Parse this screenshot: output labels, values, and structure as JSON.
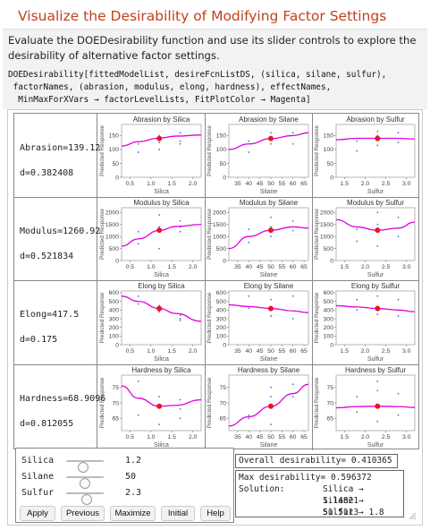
{
  "title": "Visualize the Desirability of Modifying Factor Settings",
  "description": "Evaluate the DOEDesirability function and use its slider controls to explore the desirability of alternative factor settings.",
  "code_lines": [
    "DOEDesirability[fittedModelList, desireFcnListDS, (silica, silane, sulfur),",
    " factorNames, (abrasion, modulus, elong, hardness), effectNames,",
    "  MinMaxForXVars → factorLevelLists, FitPlotColor → Magenta]"
  ],
  "rows": [
    {
      "response_label": "Abrasion=139.12",
      "desirability_label": "d=0.382408",
      "plots": [
        {
          "title": "Abrasion by Silica",
          "xlabel": "Silica",
          "ylabel": "Predicted Response",
          "xticks": [
            "0.5",
            "1.0",
            "1.5",
            "2.0"
          ],
          "yticks": [
            "0",
            "50",
            "100",
            "150"
          ]
        },
        {
          "title": "Abrasion by Silane",
          "xlabel": "Silane",
          "ylabel": "Predicted Response",
          "xticks": [
            "35",
            "40",
            "45",
            "50",
            "55",
            "60",
            "65"
          ],
          "yticks": [
            "0",
            "50",
            "100",
            "150"
          ]
        },
        {
          "title": "Abrasion by Sulfur",
          "xlabel": "Sulfur",
          "ylabel": "Predicted Response",
          "xticks": [
            "1.5",
            "2.0",
            "2.5",
            "3.0"
          ],
          "yticks": [
            "0",
            "50",
            "100",
            "150"
          ]
        }
      ]
    },
    {
      "response_label": "Modulus=1260.92",
      "desirability_label": "d=0.521834",
      "plots": [
        {
          "title": "Modulus by Silica",
          "xlabel": "Silica",
          "ylabel": "Predicted Response",
          "xticks": [
            "0.5",
            "1.0",
            "1.5",
            "2.0"
          ],
          "yticks": [
            "0",
            "500",
            "1000",
            "1500",
            "2000"
          ]
        },
        {
          "title": "Modulus by Silane",
          "xlabel": "Silane",
          "ylabel": "Predicted Response",
          "xticks": [
            "35",
            "40",
            "45",
            "50",
            "55",
            "60",
            "65"
          ],
          "yticks": [
            "0",
            "500",
            "1000",
            "1500",
            "2000"
          ]
        },
        {
          "title": "Modulus by Sulfur",
          "xlabel": "Sulfur",
          "ylabel": "Predicted Response",
          "xticks": [
            "1.5",
            "2.0",
            "2.5",
            "3.0"
          ],
          "yticks": [
            "0",
            "500",
            "1000",
            "1500",
            "2000"
          ]
        }
      ]
    },
    {
      "response_label": "Elong=417.5",
      "desirability_label": "d=0.175",
      "plots": [
        {
          "title": "Elong by Silica",
          "xlabel": "Silica",
          "ylabel": "Predicted Response",
          "xticks": [
            "0.5",
            "1.0",
            "1.5",
            "2.0"
          ],
          "yticks": [
            "0",
            "100",
            "200",
            "300",
            "400",
            "500",
            "600"
          ]
        },
        {
          "title": "Elong by Silane",
          "xlabel": "Silane",
          "ylabel": "Predicted Response",
          "xticks": [
            "35",
            "40",
            "45",
            "50",
            "55",
            "60",
            "65"
          ],
          "yticks": [
            "0",
            "100",
            "200",
            "300",
            "400",
            "500",
            "600"
          ]
        },
        {
          "title": "Elong by Sulfur",
          "xlabel": "Sulfur",
          "ylabel": "Predicted Response",
          "xticks": [
            "1.5",
            "2.0",
            "2.5",
            "3.0"
          ],
          "yticks": [
            "0",
            "100",
            "200",
            "300",
            "400",
            "500",
            "600"
          ]
        }
      ]
    },
    {
      "response_label": "Hardness=68.9096",
      "desirability_label": "d=0.812055",
      "plots": [
        {
          "title": "Hardness by Silica",
          "xlabel": "Silica",
          "ylabel": "Predicted Response",
          "xticks": [
            "0.5",
            "1.0",
            "1.5",
            "2.0"
          ],
          "yticks": [
            "65",
            "70",
            "75"
          ]
        },
        {
          "title": "Hardness by Silane",
          "xlabel": "Silane",
          "ylabel": "Predicted Response",
          "xticks": [
            "35",
            "40",
            "45",
            "50",
            "55",
            "60",
            "65"
          ],
          "yticks": [
            "65",
            "70",
            "75"
          ]
        },
        {
          "title": "Hardness by Sulfur",
          "xlabel": "Sulfur",
          "ylabel": "Predicted Response",
          "xticks": [
            "1.5",
            "2.0",
            "2.5",
            "3.0"
          ],
          "yticks": [
            "65",
            "70",
            "75"
          ]
        }
      ]
    }
  ],
  "sliders": [
    {
      "label": "Silica",
      "value": "1.2",
      "fraction": 0.45
    },
    {
      "label": "Silane",
      "value": "50",
      "fraction": 0.5
    },
    {
      "label": "Sulfur",
      "value": "2.3",
      "fraction": 0.55
    }
  ],
  "buttons": [
    "Apply",
    "Previous",
    "Maximize",
    "Initial",
    "Help"
  ],
  "overall_desirability": "Overall desirability= 0.410365",
  "max_desirability": "Max desirability= 0.596372",
  "solution_label": "Solution:",
  "solution": [
    "Silica → 1.14821",
    "Silane → 51.5113",
    "Sulfur → 1.8"
  ],
  "colors": {
    "fit_curve": "#e000e0",
    "current_point": "#e8161e",
    "data_points": "#4a6fd0",
    "title": "#c2401d"
  },
  "chart_data": [
    {
      "type": "scatter",
      "title": "Abrasion by Silica",
      "xlabel": "Silica",
      "ylabel": "Predicted Response",
      "xlim": [
        0.3,
        2.2
      ],
      "ylim": [
        0,
        190
      ],
      "curve": {
        "x": [
          0.3,
          0.7,
          1.2,
          1.6,
          2.2
        ],
        "y": [
          112,
          128,
          141,
          148,
          152
        ]
      },
      "current": {
        "x": 1.2,
        "y": 139.12
      },
      "points": {
        "x": [
          0.7,
          0.7,
          1.2,
          1.2,
          1.2,
          1.7,
          1.7,
          1.7
        ],
        "y": [
          120,
          90,
          150,
          125,
          100,
          160,
          130,
          120
        ]
      }
    },
    {
      "type": "scatter",
      "title": "Abrasion by Silane",
      "xlabel": "Silane",
      "ylabel": "Predicted Response",
      "xlim": [
        31,
        67
      ],
      "ylim": [
        0,
        190
      ],
      "curve": {
        "x": [
          31,
          40,
          50,
          60,
          67
        ],
        "y": [
          100,
          120,
          139,
          150,
          160
        ]
      },
      "current": {
        "x": 50,
        "y": 139.12
      },
      "points": {
        "x": [
          40,
          40,
          50,
          50,
          50,
          60,
          60
        ],
        "y": [
          130,
          90,
          160,
          140,
          120,
          160,
          120
        ]
      }
    },
    {
      "type": "scatter",
      "title": "Abrasion by Sulfur",
      "xlabel": "Sulfur",
      "ylabel": "Predicted Response",
      "xlim": [
        1.3,
        3.2
      ],
      "ylim": [
        0,
        190
      ],
      "curve": {
        "x": [
          1.3,
          1.8,
          2.3,
          2.8,
          3.2
        ],
        "y": [
          135,
          140,
          140,
          140,
          138
        ]
      },
      "current": {
        "x": 2.3,
        "y": 139.12
      },
      "points": {
        "x": [
          1.8,
          1.8,
          2.3,
          2.3,
          2.3,
          2.8,
          2.8
        ],
        "y": [
          130,
          95,
          165,
          150,
          115,
          160,
          125
        ]
      }
    },
    {
      "type": "scatter",
      "title": "Modulus by Silica",
      "xlabel": "Silica",
      "ylabel": "Predicted Response",
      "xlim": [
        0.3,
        2.2
      ],
      "ylim": [
        0,
        2200
      ],
      "curve": {
        "x": [
          0.3,
          0.7,
          1.2,
          1.6,
          2.2
        ],
        "y": [
          600,
          900,
          1250,
          1420,
          1500
        ]
      },
      "current": {
        "x": 1.2,
        "y": 1260.92
      },
      "points": {
        "x": [
          0.7,
          0.7,
          1.2,
          1.2,
          1.2,
          1.7,
          1.7,
          1.7
        ],
        "y": [
          1200,
          700,
          1900,
          1400,
          500,
          1650,
          1400,
          1200
        ]
      }
    },
    {
      "type": "scatter",
      "title": "Modulus by Silane",
      "xlabel": "Silane",
      "ylabel": "Predicted Response",
      "xlim": [
        31,
        67
      ],
      "ylim": [
        0,
        2200
      ],
      "curve": {
        "x": [
          31,
          40,
          50,
          60,
          67
        ],
        "y": [
          500,
          1000,
          1260,
          1400,
          1350
        ]
      },
      "current": {
        "x": 50,
        "y": 1260.92
      },
      "points": {
        "x": [
          40,
          40,
          50,
          50,
          50,
          60,
          60
        ],
        "y": [
          1300,
          750,
          1800,
          1400,
          1000,
          1650,
          1250
        ]
      }
    },
    {
      "type": "scatter",
      "title": "Modulus by Sulfur",
      "xlabel": "Sulfur",
      "ylabel": "Predicted Response",
      "xlim": [
        1.3,
        3.2
      ],
      "ylim": [
        0,
        2200
      ],
      "curve": {
        "x": [
          1.3,
          1.8,
          2.3,
          2.8,
          3.2
        ],
        "y": [
          1700,
          1400,
          1260,
          1350,
          1600
        ]
      },
      "current": {
        "x": 2.3,
        "y": 1260.92
      },
      "points": {
        "x": [
          1.8,
          1.8,
          2.3,
          2.3,
          2.3,
          2.8,
          2.8
        ],
        "y": [
          1300,
          800,
          2000,
          1500,
          600,
          1800,
          1000
        ]
      }
    },
    {
      "type": "scatter",
      "title": "Elong by Silica",
      "xlabel": "Silica",
      "ylabel": "Predicted Response",
      "xlim": [
        0.3,
        2.2
      ],
      "ylim": [
        0,
        620
      ],
      "curve": {
        "x": [
          0.3,
          0.7,
          1.2,
          1.6,
          2.2
        ],
        "y": [
          560,
          500,
          418,
          360,
          270
        ]
      },
      "current": {
        "x": 1.2,
        "y": 417.5
      },
      "points": {
        "x": [
          0.7,
          0.7,
          1.2,
          1.2,
          1.2,
          1.7,
          1.7,
          1.7
        ],
        "y": [
          560,
          470,
          450,
          420,
          380,
          340,
          300,
          280
        ]
      }
    },
    {
      "type": "scatter",
      "title": "Elong by Silane",
      "xlabel": "Silane",
      "ylabel": "Predicted Response",
      "xlim": [
        31,
        67
      ],
      "ylim": [
        0,
        620
      ],
      "curve": {
        "x": [
          31,
          40,
          50,
          60,
          67
        ],
        "y": [
          460,
          440,
          418,
          390,
          370
        ]
      },
      "current": {
        "x": 50,
        "y": 417.5
      },
      "points": {
        "x": [
          40,
          40,
          50,
          50,
          50,
          60,
          60
        ],
        "y": [
          560,
          420,
          520,
          400,
          330,
          560,
          300
        ]
      }
    },
    {
      "type": "scatter",
      "title": "Elong by Sulfur",
      "xlabel": "Sulfur",
      "ylabel": "Predicted Response",
      "xlim": [
        1.3,
        3.2
      ],
      "ylim": [
        0,
        620
      ],
      "curve": {
        "x": [
          1.3,
          1.8,
          2.3,
          2.8,
          3.2
        ],
        "y": [
          450,
          435,
          418,
          400,
          380
        ]
      },
      "current": {
        "x": 2.3,
        "y": 417.5
      },
      "points": {
        "x": [
          1.8,
          1.8,
          2.3,
          2.3,
          2.3,
          2.8,
          2.8
        ],
        "y": [
          520,
          400,
          560,
          440,
          350,
          520,
          330
        ]
      }
    },
    {
      "type": "scatter",
      "title": "Hardness by Silica",
      "xlabel": "Silica",
      "ylabel": "Predicted Response",
      "xlim": [
        0.3,
        2.2
      ],
      "ylim": [
        61,
        79
      ],
      "curve": {
        "x": [
          0.3,
          0.7,
          1.2,
          1.6,
          2.2
        ],
        "y": [
          75.5,
          71.5,
          68.9,
          69.2,
          71
        ]
      },
      "current": {
        "x": 1.2,
        "y": 68.91
      },
      "points": {
        "x": [
          0.7,
          0.7,
          1.2,
          1.2,
          1.2,
          1.7,
          1.7,
          1.7
        ],
        "y": [
          77,
          66,
          72,
          69,
          63,
          71,
          68,
          65
        ]
      }
    },
    {
      "type": "scatter",
      "title": "Hardness by Silane",
      "xlabel": "Silane",
      "ylabel": "Predicted Response",
      "xlim": [
        31,
        67
      ],
      "ylim": [
        61,
        79
      ],
      "curve": {
        "x": [
          31,
          40,
          50,
          60,
          67
        ],
        "y": [
          62.5,
          65.5,
          68.9,
          73,
          76
        ]
      },
      "current": {
        "x": 50,
        "y": 68.91
      },
      "points": {
        "x": [
          40,
          40,
          50,
          50,
          50,
          60,
          60
        ],
        "y": [
          66,
          65,
          75,
          72,
          63,
          76,
          72
        ]
      }
    },
    {
      "type": "scatter",
      "title": "Hardness by Sulfur",
      "xlabel": "Sulfur",
      "ylabel": "Predicted Response",
      "xlim": [
        1.3,
        3.2
      ],
      "ylim": [
        61,
        79
      ],
      "curve": {
        "x": [
          1.3,
          1.8,
          2.3,
          2.8,
          3.2
        ],
        "y": [
          68.4,
          68.8,
          68.9,
          68.8,
          68.5
        ]
      },
      "current": {
        "x": 2.3,
        "y": 68.91
      },
      "points": {
        "x": [
          1.8,
          1.8,
          2.3,
          2.3,
          2.3,
          2.8,
          2.8
        ],
        "y": [
          72,
          67,
          77,
          74,
          64,
          73,
          66
        ]
      }
    }
  ]
}
